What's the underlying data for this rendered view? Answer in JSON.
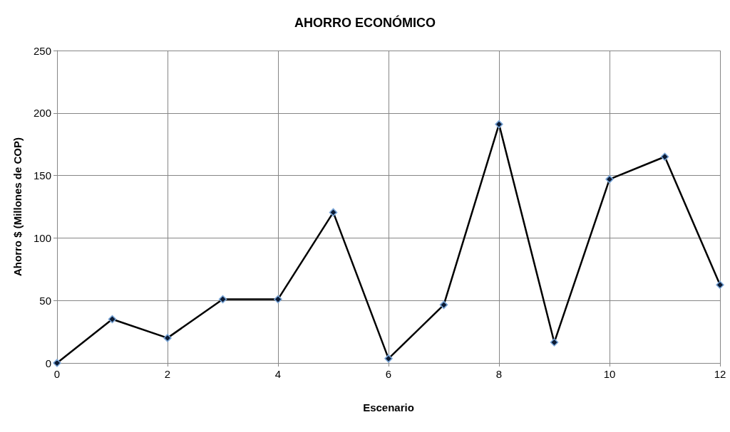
{
  "chart_data": {
    "type": "line",
    "title": "AHORRO ECONÓMICO",
    "xlabel": "Escenario",
    "ylabel": "Ahorro $ (Millones de COP)",
    "x": [
      0,
      1,
      2,
      3,
      4,
      5,
      6,
      7,
      8,
      9,
      10,
      11,
      12
    ],
    "series": [
      {
        "color": "#000000",
        "values": [
          0,
          35,
          20,
          51,
          51,
          120.5,
          3.5,
          46.5,
          191,
          16.5,
          147,
          165,
          62.5
        ]
      }
    ],
    "xlim": [
      0,
      12
    ],
    "xticks": [
      0,
      2,
      4,
      6,
      8,
      10,
      12
    ],
    "ylim": [
      0,
      250
    ],
    "yticks": [
      0,
      50,
      100,
      150,
      200,
      250
    ],
    "grid": true,
    "marker": "diamond",
    "line_style": "solid"
  }
}
